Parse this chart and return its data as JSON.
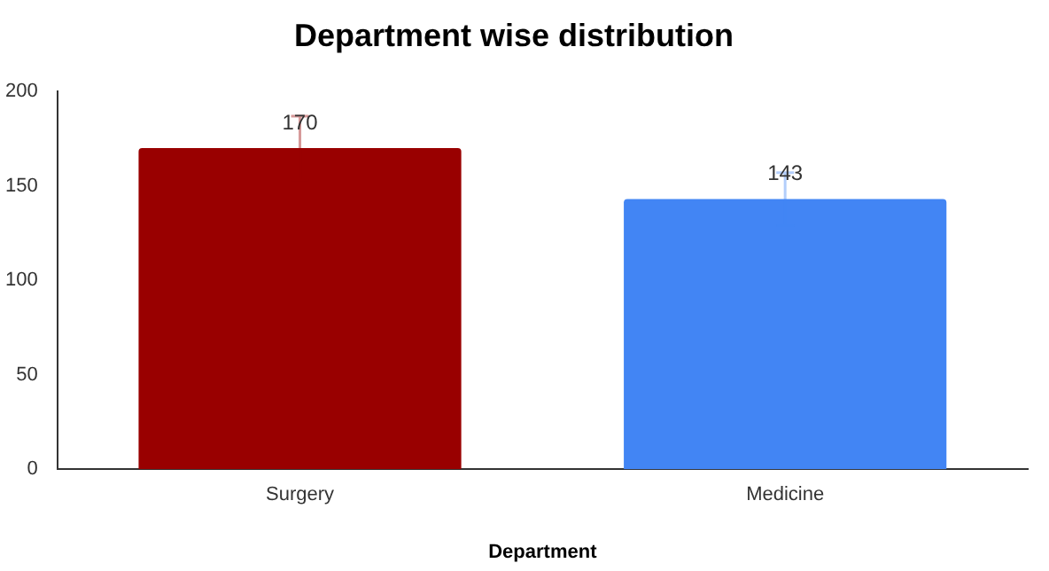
{
  "chart_data": {
    "type": "bar",
    "title": "Department wise distribution",
    "xlabel": "Department",
    "categories": [
      "Surgery",
      "Medicine"
    ],
    "values": [
      170,
      143
    ],
    "colors": [
      "#990000",
      "#4285f4"
    ],
    "errors": [
      17,
      14
    ],
    "ylim": [
      0,
      200
    ],
    "yticks": [
      0,
      50,
      100,
      150,
      200
    ],
    "grid": false,
    "legend": false,
    "data_labels": true
  }
}
